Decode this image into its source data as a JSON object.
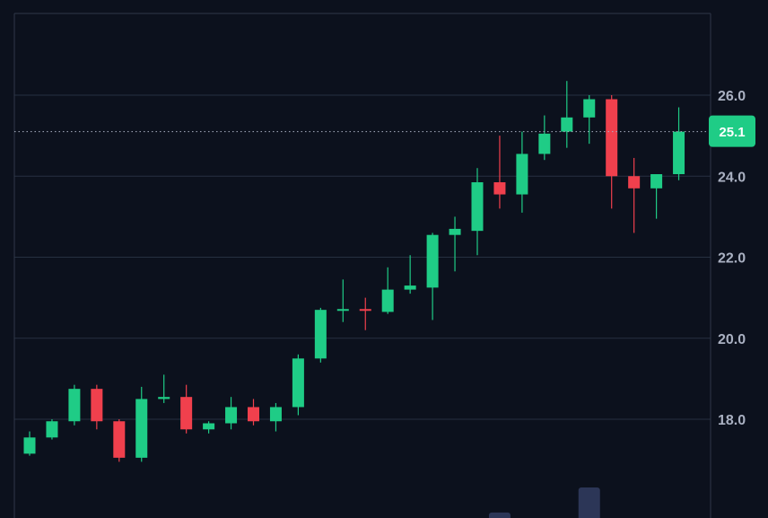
{
  "colors": {
    "background": "#0c111d",
    "grid": "#263041",
    "frame": "#2f3849",
    "up": "#1fcc86",
    "down": "#f0404d",
    "volume": "#2c3657",
    "last_price_line": "#aab1c2",
    "axis_text": "#aab1c2"
  },
  "chart_data": {
    "type": "candlestick",
    "title": "",
    "xlabel": "",
    "ylabel": "",
    "ylim": [
      16.0,
      26.4
    ],
    "y_ticks": [
      "18.0",
      "20.0",
      "22.0",
      "24.0",
      "26.0"
    ],
    "grid": true,
    "last_price": {
      "value": 25.1,
      "label": "25.1"
    },
    "candles": [
      {
        "o": 17.15,
        "h": 17.7,
        "l": 17.1,
        "c": 17.55
      },
      {
        "o": 17.55,
        "h": 18.0,
        "l": 17.5,
        "c": 17.95
      },
      {
        "o": 17.95,
        "h": 18.85,
        "l": 17.85,
        "c": 18.75
      },
      {
        "o": 18.75,
        "h": 18.85,
        "l": 17.75,
        "c": 17.95
      },
      {
        "o": 17.95,
        "h": 18.0,
        "l": 16.95,
        "c": 17.05
      },
      {
        "o": 17.05,
        "h": 18.8,
        "l": 16.95,
        "c": 18.5
      },
      {
        "o": 18.5,
        "h": 19.1,
        "l": 18.4,
        "c": 18.55
      },
      {
        "o": 18.55,
        "h": 18.85,
        "l": 17.65,
        "c": 17.75
      },
      {
        "o": 17.75,
        "h": 17.95,
        "l": 17.65,
        "c": 17.9
      },
      {
        "o": 17.9,
        "h": 18.55,
        "l": 17.75,
        "c": 18.3
      },
      {
        "o": 18.3,
        "h": 18.5,
        "l": 17.85,
        "c": 17.95
      },
      {
        "o": 17.95,
        "h": 18.4,
        "l": 17.7,
        "c": 18.3
      },
      {
        "o": 18.3,
        "h": 19.6,
        "l": 18.1,
        "c": 19.5
      },
      {
        "o": 19.5,
        "h": 20.75,
        "l": 19.4,
        "c": 20.7
      },
      {
        "o": 20.7,
        "h": 21.45,
        "l": 20.4,
        "c": 20.72
      },
      {
        "o": 20.72,
        "h": 21.0,
        "l": 20.2,
        "c": 20.68
      },
      {
        "o": 20.65,
        "h": 21.75,
        "l": 20.6,
        "c": 21.2
      },
      {
        "o": 21.2,
        "h": 22.05,
        "l": 21.1,
        "c": 21.3
      },
      {
        "o": 21.25,
        "h": 22.6,
        "l": 20.45,
        "c": 22.55
      },
      {
        "o": 22.55,
        "h": 23.0,
        "l": 21.65,
        "c": 22.7
      },
      {
        "o": 22.65,
        "h": 24.2,
        "l": 22.05,
        "c": 23.85
      },
      {
        "o": 23.85,
        "h": 25.0,
        "l": 23.2,
        "c": 23.55
      },
      {
        "o": 23.55,
        "h": 25.1,
        "l": 23.1,
        "c": 24.55
      },
      {
        "o": 24.55,
        "h": 25.5,
        "l": 24.4,
        "c": 25.05
      },
      {
        "o": 25.1,
        "h": 26.35,
        "l": 24.7,
        "c": 25.45
      },
      {
        "o": 25.45,
        "h": 26.0,
        "l": 24.8,
        "c": 25.9
      },
      {
        "o": 25.9,
        "h": 26.0,
        "l": 23.2,
        "c": 24.0
      },
      {
        "o": 24.0,
        "h": 24.45,
        "l": 22.6,
        "c": 23.7
      },
      {
        "o": 23.7,
        "h": 24.05,
        "l": 22.95,
        "c": 24.05
      },
      {
        "o": 24.05,
        "h": 25.7,
        "l": 23.9,
        "c": 25.1
      }
    ],
    "volume": [
      0,
      0,
      0,
      0,
      0,
      0,
      0,
      0,
      0,
      0,
      0,
      0,
      0,
      0,
      0,
      0,
      0,
      0,
      0,
      0,
      0,
      0.18,
      0,
      0,
      0,
      1.0,
      0,
      0,
      0,
      0
    ]
  }
}
